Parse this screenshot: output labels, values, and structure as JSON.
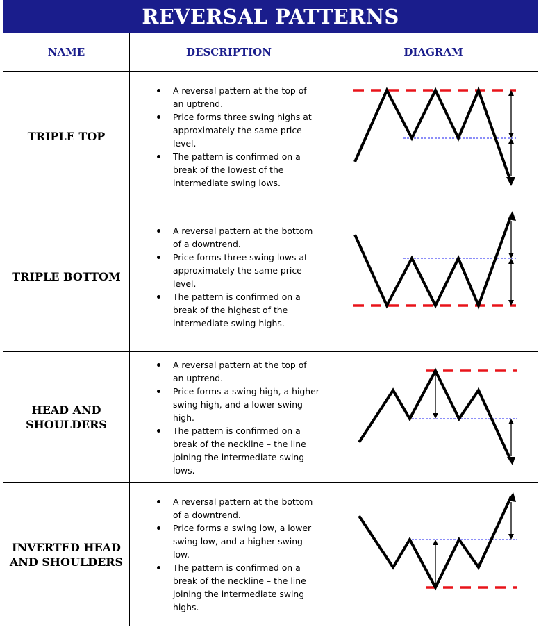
{
  "title": "REVERSAL PATTERNS",
  "headers": {
    "name": "NAME",
    "description": "DESCRIPTION",
    "diagram": "DIAGRAM"
  },
  "colors": {
    "title_bg": "#1a1d8c",
    "header_text": "#1a1d8c",
    "level_line": "#e8141a",
    "neckline": "#1a1df0",
    "price_line": "#000000"
  },
  "patterns": [
    {
      "name": "TRIPLE TOP",
      "bullets": [
        "A reversal pattern at the top of an uptrend.",
        "Price forms three swing highs at approximately the same price level.",
        "The pattern is confirmed on a break of the lowest of the intermediate swing lows."
      ]
    },
    {
      "name": "TRIPLE BOTTOM",
      "bullets": [
        "A reversal pattern at the bottom of a downtrend.",
        "Price forms three swing lows at approximately the same price level.",
        "The pattern is confirmed on a break of the highest of the intermediate swing highs."
      ]
    },
    {
      "name": "HEAD AND SHOULDERS",
      "bullets": [
        "A reversal pattern at the top of an uptrend.",
        "Price forms a swing high, a higher swing high, and a lower swing high.",
        "The pattern is confirmed on a break of the neckline – the line joining the intermediate swing lows."
      ]
    },
    {
      "name": "INVERTED HEAD AND SHOULDERS",
      "bullets": [
        "A reversal pattern at the bottom of a downtrend.",
        "Price forms a swing low, a lower swing low, and a higher swing low.",
        "The pattern is confirmed on a break of the neckline – the line joining the intermediate swing highs."
      ]
    }
  ]
}
